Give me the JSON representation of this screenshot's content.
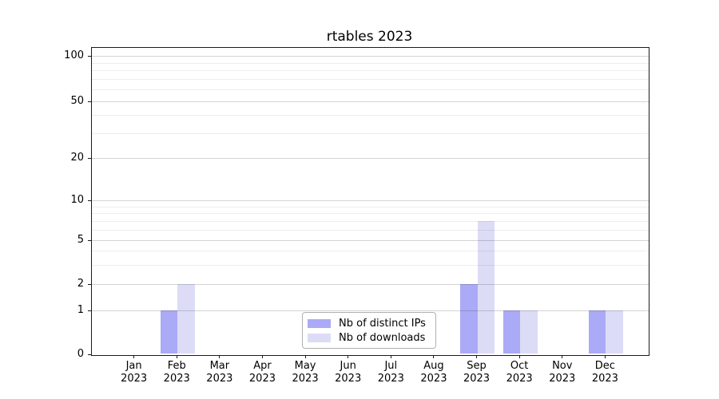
{
  "chart_data": {
    "type": "bar",
    "title": "rtables 2023",
    "xlabel": "",
    "ylabel": "",
    "x_year": "2023",
    "categories": [
      "Jan",
      "Feb",
      "Mar",
      "Apr",
      "May",
      "Jun",
      "Jul",
      "Aug",
      "Sep",
      "Oct",
      "Nov",
      "Dec"
    ],
    "series": [
      {
        "name": "Nb of distinct IPs",
        "color": "#aaaaf6",
        "values": [
          0,
          1,
          0,
          0,
          0,
          0,
          0,
          0,
          2,
          1,
          0,
          1
        ]
      },
      {
        "name": "Nb of downloads",
        "color": "#dcdcf7",
        "values": [
          0,
          2,
          0,
          0,
          0,
          0,
          0,
          0,
          7,
          1,
          0,
          1
        ]
      }
    ],
    "y_scale": "symlog",
    "y_ticks": [
      0,
      1,
      2,
      5,
      10,
      20,
      50,
      100
    ],
    "y_minor_ticks": [
      3,
      4,
      6,
      7,
      8,
      9,
      30,
      40,
      60,
      70,
      80,
      90
    ],
    "ylim": [
      0,
      115
    ],
    "grid": true,
    "legend_position": "lower center"
  },
  "colors": {
    "spine": "#1a1a1a",
    "legend_border": "#b0b0b0",
    "background": "#ffffff"
  }
}
